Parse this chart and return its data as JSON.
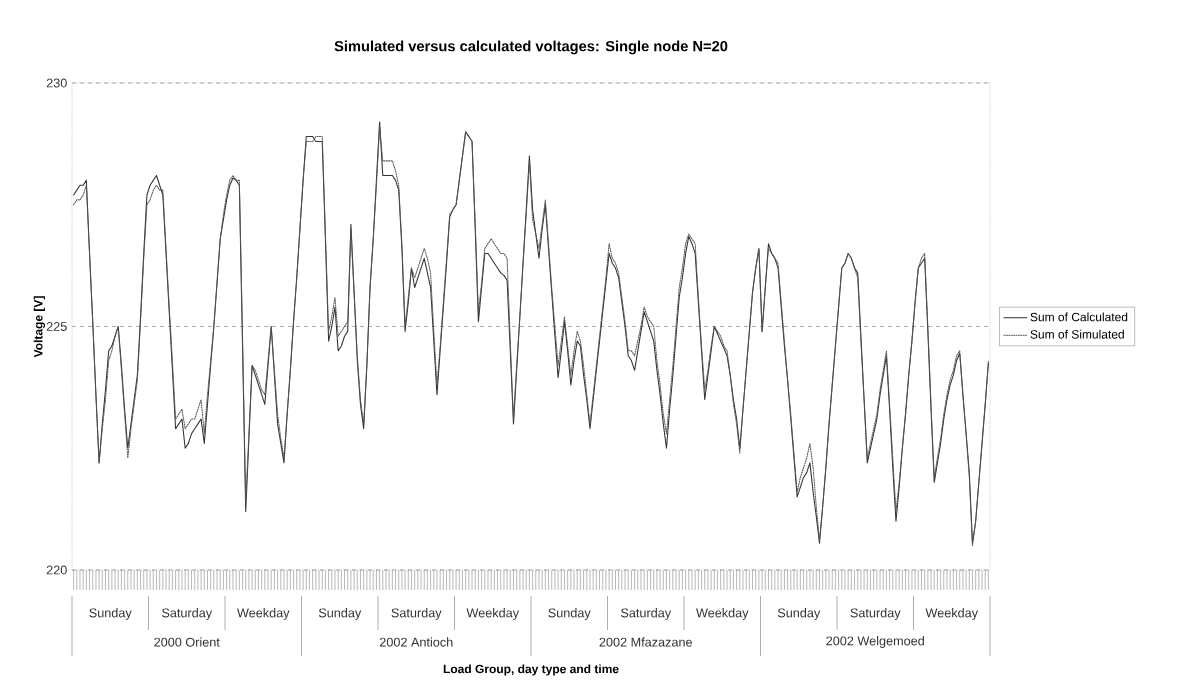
{
  "chart_data": {
    "type": "line",
    "title": "Simulated versus calculated voltages: Single node N=20",
    "ylabel": "Voltage [V]",
    "annotations": [
      "Sunday",
      "Saturday",
      "Weekday",
      "Sunday",
      "Saturday",
      "Weekday",
      "Sunday",
      "Saturday",
      "Weekday",
      "Sunday",
      "Saturday",
      "Weekday",
      "2000 Orient",
      "2002 Antioch",
      "2002 Mfazazane",
      "2002 Welgemoed",
      "Load Group, day type and time"
    ],
    "categories": [
      null,
      null,
      null,
      null,
      null,
      null,
      null,
      null,
      null,
      null,
      null,
      null,
      null,
      null,
      null,
      null,
      null,
      null,
      null,
      null,
      null,
      null,
      null,
      null,
      null,
      null,
      null,
      null,
      null,
      null,
      null,
      null,
      null,
      null,
      null,
      null,
      null,
      null,
      null,
      null,
      null,
      null,
      null,
      null,
      null,
      null,
      null,
      null,
      null,
      null,
      null,
      null,
      null,
      null,
      null,
      null,
      null,
      null,
      null,
      null,
      null,
      null,
      null,
      null,
      null,
      null,
      null,
      null,
      null,
      null,
      null,
      null,
      null,
      null,
      null,
      null,
      null,
      null,
      null,
      null,
      null,
      null,
      null,
      null,
      null,
      null,
      null,
      null,
      null,
      null,
      null,
      null,
      null,
      null,
      null,
      null,
      null,
      null,
      null,
      null,
      null,
      null,
      null,
      null,
      null,
      null,
      null,
      null,
      null,
      null,
      null,
      null,
      null,
      null,
      null,
      null,
      null,
      null,
      null,
      null,
      null,
      null,
      null,
      null,
      null,
      null,
      null,
      null,
      null,
      null,
      null,
      null,
      null,
      null,
      null,
      null,
      null,
      null,
      null,
      null,
      null,
      null,
      null,
      null,
      null,
      null,
      null,
      null,
      null,
      null,
      null,
      null,
      null,
      null,
      null,
      null,
      null,
      null,
      null,
      null,
      null,
      null,
      null,
      null,
      null,
      null,
      null,
      null,
      null,
      null,
      null,
      null,
      null,
      null,
      null,
      null,
      null,
      null,
      null,
      null,
      null,
      null,
      null,
      null,
      null,
      null,
      null,
      null,
      null,
      null,
      null,
      null,
      null,
      null,
      null,
      null,
      null,
      null,
      null,
      null,
      null,
      null,
      null,
      null,
      null,
      null,
      null,
      null,
      null,
      null,
      null,
      null,
      null,
      null,
      null,
      null,
      null,
      null,
      null,
      null,
      null,
      null,
      null,
      null,
      null,
      null,
      null,
      null,
      null,
      null,
      null,
      null,
      null,
      null,
      null,
      null,
      null,
      null,
      null,
      null,
      null,
      null,
      null,
      null,
      null,
      null,
      null,
      null,
      null,
      null,
      null,
      null,
      null,
      null,
      null,
      null,
      null,
      null,
      null,
      null,
      null,
      null,
      null,
      null,
      null,
      null,
      null,
      null,
      null,
      null,
      null,
      null,
      null,
      null,
      null,
      null,
      null,
      null,
      null,
      null,
      null,
      null,
      null,
      null,
      null,
      null,
      null,
      null
    ],
    "ylim": [
      220,
      230
    ],
    "yticks": [
      220,
      225,
      230
    ],
    "grid": "y",
    "legend": "right",
    "marker": "none",
    "series": [
      {
        "name": "Sum of Calculated",
        "color": "#333333",
        "line_style": "solid",
        "values": [
          227.7,
          227.8,
          227.9,
          227.9,
          228.0,
          226.5,
          225.1,
          223.6,
          222.2,
          223.0,
          223.7,
          224.5,
          224.6,
          224.8,
          225.0,
          224.2,
          223.3,
          222.5,
          223.0,
          223.5,
          224.0,
          225.2,
          226.5,
          227.7,
          227.9,
          228.0,
          228.1,
          227.9,
          227.7,
          226.5,
          225.3,
          224.1,
          222.9,
          223.0,
          223.1,
          222.5,
          222.6,
          222.8,
          222.9,
          223.0,
          223.1,
          222.6,
          223.4,
          224.2,
          225.0,
          225.9,
          226.8,
          227.2,
          227.6,
          227.9,
          228.05,
          228.0,
          227.9,
          224.6,
          221.2,
          222.7,
          224.2,
          224.0,
          223.8,
          223.6,
          223.4,
          224.2,
          225.0,
          224.0,
          223.0,
          222.6,
          222.2,
          223.2,
          224.1,
          225.1,
          226.0,
          227.0,
          228.0,
          228.9,
          228.9,
          228.9,
          228.8,
          228.8,
          228.8,
          226.8,
          224.7,
          225.0,
          225.4,
          224.5,
          224.6,
          224.8,
          224.9,
          227.1,
          225.7,
          224.3,
          223.4,
          222.9,
          224.2,
          225.8,
          226.8,
          228.0,
          229.2,
          228.1,
          228.1,
          228.1,
          228.1,
          228.0,
          227.8,
          226.6,
          224.9,
          225.5,
          226.2,
          225.8,
          226.0,
          226.2,
          226.4,
          226.1,
          225.8,
          224.7,
          223.6,
          224.5,
          225.4,
          226.3,
          227.25,
          227.4,
          227.5,
          228.0,
          228.5,
          229.0,
          228.9,
          228.8,
          227.0,
          225.1,
          225.8,
          226.5,
          226.5,
          226.4,
          226.3,
          226.2,
          226.1,
          226.05,
          225.95,
          224.5,
          223.0,
          224.1,
          225.2,
          226.3,
          227.4,
          228.5,
          227.4,
          226.9,
          226.4,
          227.0,
          227.5,
          226.6,
          225.7,
          224.8,
          223.95,
          224.5,
          225.1,
          224.5,
          223.8,
          224.3,
          224.7,
          224.6,
          224.0,
          223.5,
          222.9,
          223.5,
          224.1,
          224.7,
          225.3,
          225.9,
          226.5,
          226.3,
          226.2,
          226.0,
          225.5,
          225.0,
          224.4,
          224.3,
          224.1,
          224.5,
          224.9,
          225.3,
          225.1,
          224.9,
          224.7,
          224.1,
          223.6,
          223.0,
          222.5,
          223.3,
          224.0,
          224.8,
          225.6,
          226.0,
          226.5,
          226.85,
          226.7,
          226.5,
          225.5,
          224.5,
          223.5,
          224.0,
          224.5,
          225.0,
          224.85,
          224.7,
          224.55,
          224.4,
          224.0,
          223.5,
          223.1,
          222.5,
          223.3,
          224.1,
          224.9,
          225.7,
          226.2,
          226.6,
          224.9,
          225.8,
          226.7,
          226.5,
          226.4,
          226.2,
          225.4,
          224.6,
          223.9,
          223.1,
          222.3,
          221.5,
          221.7,
          221.9,
          222.0,
          222.2,
          221.6,
          221.1,
          220.55,
          221.3,
          222.1,
          223.0,
          223.8,
          224.6,
          225.4,
          226.2,
          226.3,
          226.5,
          226.4,
          226.2,
          226.1,
          224.8,
          223.5,
          222.2,
          222.5,
          222.8,
          223.1,
          223.6,
          224.0,
          224.4,
          223.3,
          222.1,
          221.0,
          221.7,
          222.5,
          223.2,
          224.0,
          224.7,
          225.5,
          226.2,
          226.3,
          226.4,
          224.9,
          223.3,
          221.8,
          222.2,
          222.6,
          223.1,
          223.5,
          223.8,
          224.0,
          224.3,
          224.45,
          223.6,
          222.8,
          222.0,
          220.55,
          221.0,
          221.8,
          222.6,
          223.4,
          224.25
        ]
      },
      {
        "name": "Sum of Simulated",
        "color": "#555555",
        "line_style": "dotted",
        "values": [
          227.5,
          227.6,
          227.6,
          227.7,
          227.9,
          226.5,
          225.1,
          223.6,
          222.2,
          222.9,
          223.5,
          224.3,
          224.5,
          224.8,
          225.0,
          224.1,
          223.2,
          222.3,
          222.9,
          223.4,
          223.9,
          225.1,
          226.4,
          227.5,
          227.6,
          227.8,
          227.9,
          227.8,
          227.8,
          226.6,
          225.4,
          224.3,
          223.1,
          223.2,
          223.3,
          222.9,
          223.0,
          223.1,
          223.1,
          223.3,
          223.5,
          222.8,
          223.6,
          224.3,
          225.0,
          225.9,
          226.8,
          227.3,
          227.7,
          228.0,
          228.1,
          228.0,
          228.0,
          224.8,
          221.4,
          222.8,
          224.2,
          224.1,
          223.9,
          223.7,
          223.6,
          224.3,
          225.0,
          224.1,
          223.2,
          222.7,
          222.3,
          223.2,
          224.1,
          225.1,
          226.0,
          227.0,
          228.0,
          228.8,
          228.8,
          228.8,
          228.9,
          228.9,
          228.9,
          226.9,
          224.9,
          225.2,
          225.6,
          224.8,
          224.9,
          225.0,
          225.1,
          227.0,
          225.7,
          224.4,
          223.5,
          223.0,
          224.2,
          225.8,
          226.8,
          227.9,
          229.1,
          228.4,
          228.4,
          228.4,
          228.4,
          228.2,
          227.9,
          226.7,
          225.0,
          225.6,
          226.2,
          226.0,
          226.2,
          226.4,
          226.6,
          226.4,
          226.1,
          224.9,
          223.8,
          224.6,
          225.5,
          226.4,
          227.3,
          227.4,
          227.5,
          228.0,
          228.5,
          229.0,
          228.9,
          228.8,
          227.1,
          225.3,
          225.9,
          226.6,
          226.7,
          226.8,
          226.7,
          226.6,
          226.5,
          226.5,
          226.4,
          224.7,
          223.1,
          224.2,
          225.2,
          226.3,
          227.3,
          228.4,
          227.2,
          226.9,
          226.6,
          227.1,
          227.6,
          226.7,
          225.8,
          225.0,
          224.2,
          224.7,
          225.2,
          224.6,
          224.0,
          224.5,
          224.9,
          224.7,
          224.2,
          223.6,
          223.0,
          223.6,
          224.2,
          224.8,
          225.4,
          226.0,
          226.7,
          226.4,
          226.3,
          226.1,
          225.6,
          225.1,
          224.5,
          224.5,
          224.4,
          224.7,
          225.0,
          225.4,
          225.2,
          225.1,
          225.0,
          224.3,
          223.8,
          223.2,
          222.8,
          223.5,
          224.2,
          225.0,
          225.8,
          226.2,
          226.7,
          226.9,
          226.8,
          226.7,
          225.6,
          224.6,
          223.7,
          224.1,
          224.6,
          225.0,
          224.9,
          224.8,
          224.6,
          224.5,
          224.0,
          223.4,
          223.0,
          222.4,
          223.3,
          224.1,
          224.9,
          225.7,
          226.2,
          226.6,
          224.9,
          225.8,
          226.6,
          226.5,
          226.4,
          226.3,
          225.5,
          224.7,
          223.9,
          223.2,
          222.4,
          221.6,
          221.9,
          222.1,
          222.3,
          222.6,
          222.1,
          221.3,
          220.6,
          221.3,
          222.1,
          223.0,
          223.8,
          224.6,
          225.4,
          226.2,
          226.3,
          226.5,
          226.4,
          226.2,
          226.0,
          224.7,
          223.5,
          222.3,
          222.6,
          222.9,
          223.2,
          223.7,
          224.1,
          224.5,
          223.4,
          222.3,
          221.2,
          221.8,
          222.5,
          223.2,
          224.0,
          224.7,
          225.5,
          226.2,
          226.4,
          226.5,
          225.0,
          223.4,
          221.9,
          222.3,
          222.7,
          223.2,
          223.6,
          223.9,
          224.1,
          224.4,
          224.5,
          223.6,
          222.8,
          221.9,
          220.5,
          221.0,
          221.8,
          222.6,
          223.4,
          224.3
        ]
      }
    ]
  }
}
